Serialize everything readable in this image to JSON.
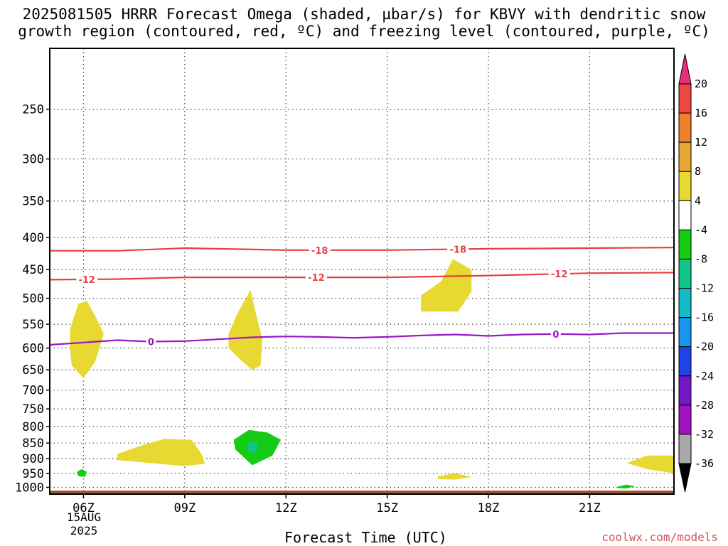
{
  "title": "2025081505 HRRR Forecast Omega (shaded, µbar/s) for KBVY with dendritic snow\ngrowth region (contoured, red, ºC) and freezing level (contoured, purple, ºC)",
  "xlabel": "Forecast Time (UTC)",
  "credit": "coolwx.com/models",
  "date_label": "15AUG\n2025",
  "chart_data": {
    "type": "time-height cross section (filled contour + line contours)",
    "x_axis": {
      "label": "Forecast Time (UTC)",
      "range_hours": [
        5,
        23.5
      ],
      "ticks": [
        {
          "hour": 6,
          "label": "06Z"
        },
        {
          "hour": 9,
          "label": "09Z"
        },
        {
          "hour": 12,
          "label": "12Z"
        },
        {
          "hour": 15,
          "label": "15Z"
        },
        {
          "hour": 18,
          "label": "18Z"
        },
        {
          "hour": 21,
          "label": "21Z"
        }
      ]
    },
    "y_axis": {
      "label": "",
      "units": "hPa",
      "scale": "log",
      "inverted": true,
      "range": [
        1025,
        200
      ],
      "ticks": [
        250,
        300,
        350,
        400,
        450,
        500,
        550,
        600,
        650,
        700,
        750,
        800,
        850,
        900,
        950,
        1000
      ]
    },
    "grid": true,
    "colorbar": {
      "levels": [
        20,
        16,
        12,
        8,
        4,
        -4,
        -8,
        -12,
        -16,
        -20,
        -24,
        -28,
        -32,
        -36
      ],
      "colors": [
        "#e8307a",
        "#ee4545",
        "#ef7f2b",
        "#e8a834",
        "#e8d832",
        "#ffffff",
        "#14cc14",
        "#12c48a",
        "#14bcc4",
        "#1696ee",
        "#1e44e6",
        "#7318c8",
        "#a410c4",
        "#a8a8a8",
        "#000000"
      ]
    },
    "temperature_contours": [
      {
        "label": "-18",
        "color": "#e84040",
        "points": [
          [
            5,
            420
          ],
          [
            7,
            420
          ],
          [
            9,
            416
          ],
          [
            12,
            419
          ],
          [
            15,
            419
          ],
          [
            18,
            417
          ],
          [
            21,
            416
          ],
          [
            23.5,
            415
          ]
        ]
      },
      {
        "label": "-12",
        "color": "#e84040",
        "points": [
          [
            5,
            467
          ],
          [
            7,
            466
          ],
          [
            9,
            463
          ],
          [
            12,
            463
          ],
          [
            15,
            463
          ],
          [
            18,
            460
          ],
          [
            21,
            456
          ],
          [
            23.5,
            455
          ]
        ]
      },
      {
        "label": "0",
        "color": "#9a16c8",
        "points": [
          [
            5,
            593
          ],
          [
            6,
            588
          ],
          [
            7,
            583
          ],
          [
            8,
            586
          ],
          [
            9,
            585
          ],
          [
            10,
            581
          ],
          [
            11,
            577
          ],
          [
            12,
            575
          ],
          [
            13,
            576
          ],
          [
            14,
            578
          ],
          [
            15,
            576
          ],
          [
            16,
            573
          ],
          [
            17,
            571
          ],
          [
            18,
            574
          ],
          [
            19,
            571
          ],
          [
            20,
            570
          ],
          [
            21,
            571
          ],
          [
            22,
            568
          ],
          [
            23.5,
            568
          ]
        ]
      }
    ],
    "contour_label_positions": {
      "-18": [
        13,
        17.1
      ],
      "-12": [
        6.1,
        12.9,
        20.1
      ],
      "0": [
        8,
        20
      ]
    },
    "omega_regions": [
      {
        "value_range": "4 to 8",
        "color": "#e8d832",
        "polygon": [
          [
            5.6,
            560
          ],
          [
            5.85,
            510
          ],
          [
            6.1,
            505
          ],
          [
            6.4,
            540
          ],
          [
            6.6,
            570
          ],
          [
            6.35,
            630
          ],
          [
            6,
            670
          ],
          [
            5.65,
            640
          ],
          [
            5.6,
            600
          ]
        ]
      },
      {
        "value_range": "4 to 8",
        "color": "#e8d832",
        "polygon": [
          [
            10.3,
            570
          ],
          [
            10.55,
            530
          ],
          [
            10.95,
            485
          ],
          [
            11.15,
            540
          ],
          [
            11.3,
            580
          ],
          [
            11.25,
            640
          ],
          [
            11,
            650
          ],
          [
            10.7,
            630
          ],
          [
            10.3,
            600
          ]
        ]
      },
      {
        "value_range": "4 to 8",
        "color": "#e8d832",
        "polygon": [
          [
            16,
            495
          ],
          [
            16.6,
            470
          ],
          [
            16.95,
            433
          ],
          [
            17.5,
            450
          ],
          [
            17.5,
            488
          ],
          [
            17.1,
            525
          ],
          [
            16,
            525
          ]
        ]
      },
      {
        "value_range": "4 to 8",
        "color": "#e8d832",
        "polygon": [
          [
            7,
            885
          ],
          [
            7.8,
            855
          ],
          [
            8.4,
            837
          ],
          [
            9.2,
            840
          ],
          [
            9.5,
            885
          ],
          [
            9.6,
            917
          ],
          [
            9,
            925
          ],
          [
            7,
            905
          ]
        ]
      },
      {
        "value_range": "4 to 8",
        "color": "#e8d832",
        "polygon": [
          [
            16.5,
            960
          ],
          [
            17,
            950
          ],
          [
            17.5,
            962
          ],
          [
            17,
            972
          ],
          [
            16.5,
            970
          ]
        ]
      },
      {
        "value_range": "4 to 8",
        "color": "#e8d832",
        "polygon": [
          [
            22.1,
            915
          ],
          [
            22.7,
            890
          ],
          [
            23.5,
            890
          ],
          [
            23.5,
            950
          ],
          [
            22.7,
            935
          ]
        ]
      },
      {
        "value_range": "-4 to -8",
        "color": "#14cc14",
        "polygon": [
          [
            10.45,
            840
          ],
          [
            10.9,
            810
          ],
          [
            11.45,
            818
          ],
          [
            11.85,
            840
          ],
          [
            11.6,
            890
          ],
          [
            11,
            922
          ],
          [
            10.5,
            870
          ]
        ]
      },
      {
        "value_range": "-8 to -12",
        "color": "#12c48a",
        "polygon": [
          [
            10.85,
            855
          ],
          [
            11,
            843
          ],
          [
            11.18,
            855
          ],
          [
            11.1,
            880
          ],
          [
            10.9,
            880
          ]
        ]
      },
      {
        "value_range": "-4 to -8",
        "color": "#14cc14",
        "polygon": [
          [
            5.8,
            945
          ],
          [
            5.95,
            935
          ],
          [
            6.1,
            945
          ],
          [
            6.05,
            962
          ],
          [
            5.85,
            960
          ]
        ]
      },
      {
        "value_range": "-4 to -8",
        "color": "#14cc14",
        "polygon": [
          [
            21.8,
            998
          ],
          [
            22.1,
            990
          ],
          [
            22.35,
            996
          ],
          [
            22.1,
            1004
          ],
          [
            21.85,
            1003
          ]
        ]
      }
    ],
    "terrain": {
      "color": "#a0522d",
      "top_hPa": 1012
    }
  }
}
